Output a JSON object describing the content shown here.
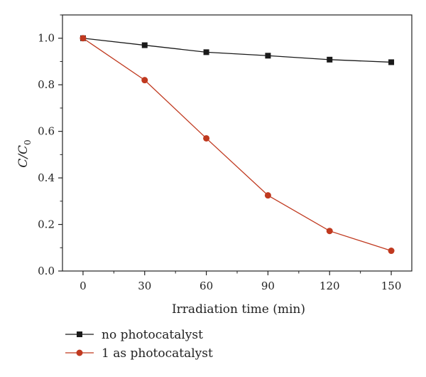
{
  "chart_data": {
    "type": "line",
    "xlabel": "Irradiation time (min)",
    "ylabel": "C/C",
    "ylabel_subscript": "0",
    "x": [
      0,
      30,
      60,
      90,
      120,
      150
    ],
    "xlim": [
      -10,
      160
    ],
    "ylim": [
      0.0,
      1.1
    ],
    "x_ticks": [
      "0",
      "30",
      "60",
      "90",
      "120",
      "150"
    ],
    "y_ticks": [
      "0.0",
      "0.2",
      "0.4",
      "0.6",
      "0.8",
      "1.0"
    ],
    "y_tick_values": [
      0.0,
      0.2,
      0.4,
      0.6,
      0.8,
      1.0
    ],
    "grid": false,
    "legend_position": "bottom",
    "series": [
      {
        "name": "no photocatalyst",
        "marker": "square",
        "color": "#1a1a1a",
        "values": [
          1.0,
          0.97,
          0.94,
          0.925,
          0.908,
          0.897
        ]
      },
      {
        "name": "1 as photocatalyst",
        "marker": "circle",
        "color": "#c0391f",
        "values": [
          1.0,
          0.82,
          0.57,
          0.325,
          0.172,
          0.087
        ]
      }
    ]
  }
}
